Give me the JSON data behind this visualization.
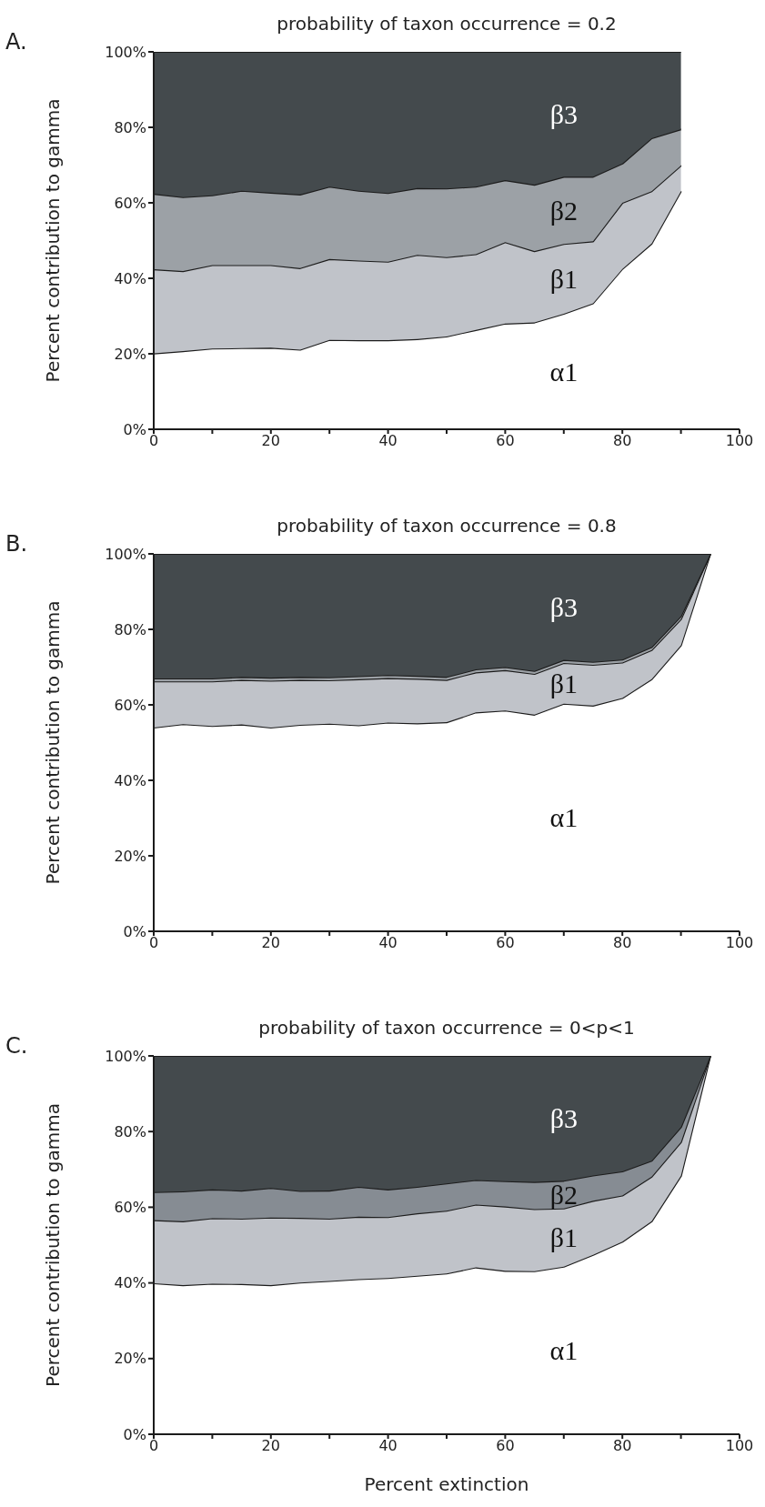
{
  "chart_data": [
    {
      "type": "area",
      "stacked": true,
      "title": "probability of taxon occurrence = 0.2",
      "ylabel": "Percent contribution to gamma",
      "annotations": [
        "A."
      ],
      "x": [
        0,
        5,
        10,
        15,
        20,
        25,
        30,
        35,
        40,
        45,
        50,
        55,
        60,
        65,
        70,
        75,
        80,
        85,
        90
      ],
      "xlim": [
        0,
        100
      ],
      "xticks": [
        0,
        {
          "value": 10,
          "label": null
        },
        20,
        {
          "value": 30,
          "label": null
        },
        40,
        {
          "value": 50,
          "label": null
        },
        60,
        {
          "value": 70,
          "label": null
        },
        80,
        {
          "value": 90,
          "label": null
        },
        100
      ],
      "ylim": [
        0,
        100
      ],
      "yticks": [
        {
          "value": 0,
          "label": "0%"
        },
        {
          "value": 20,
          "label": "20%"
        },
        {
          "value": 40,
          "label": "40%"
        },
        {
          "value": 60,
          "label": "60%"
        },
        {
          "value": 80,
          "label": "80%"
        },
        {
          "value": 100,
          "label": "100%"
        }
      ],
      "series": [
        {
          "name": "α1",
          "color": "#ffffff",
          "values": [
            20.1,
            20.7,
            21.4,
            21.5,
            21.6,
            21.1,
            23.7,
            23.6,
            23.6,
            23.9,
            24.6,
            26.3,
            28.0,
            28.3,
            30.6,
            33.4,
            42.5,
            49.2,
            63.1
          ]
        },
        {
          "name": "β1",
          "color": "#c0c3c9",
          "values": [
            22.3,
            21.2,
            22.1,
            22.0,
            21.9,
            21.6,
            21.4,
            21.1,
            20.8,
            22.3,
            21.0,
            20.1,
            21.6,
            18.9,
            18.5,
            16.4,
            17.5,
            13.9,
            6.8
          ]
        },
        {
          "name": "β2",
          "color": "#9ca1a6",
          "values": [
            20.0,
            19.6,
            18.5,
            19.7,
            19.2,
            19.5,
            19.2,
            18.5,
            18.2,
            17.7,
            18.2,
            17.9,
            16.4,
            17.6,
            17.8,
            17.1,
            10.4,
            14.0,
            9.6
          ]
        },
        {
          "name": "β3",
          "color": "#444a4d",
          "values": [
            37.6,
            38.5,
            38.0,
            36.8,
            37.3,
            37.8,
            35.7,
            36.8,
            37.4,
            36.1,
            36.2,
            35.7,
            34.0,
            35.2,
            33.1,
            33.1,
            29.6,
            22.9,
            20.5
          ]
        }
      ]
    },
    {
      "type": "area",
      "stacked": true,
      "title": "probability of taxon occurrence = 0.8",
      "ylabel": "Percent contribution to gamma",
      "annotations": [
        "B."
      ],
      "x": [
        0,
        5,
        10,
        15,
        20,
        25,
        30,
        35,
        40,
        45,
        50,
        55,
        60,
        65,
        70,
        75,
        80,
        85,
        90,
        95
      ],
      "xlim": [
        0,
        100
      ],
      "xticks": [
        0,
        {
          "value": 10,
          "label": null
        },
        20,
        {
          "value": 30,
          "label": null
        },
        40,
        {
          "value": 50,
          "label": null
        },
        60,
        {
          "value": 70,
          "label": null
        },
        80,
        {
          "value": 90,
          "label": null
        },
        100
      ],
      "ylim": [
        0,
        100
      ],
      "yticks": [
        {
          "value": 0,
          "label": "0%"
        },
        {
          "value": 20,
          "label": "20%"
        },
        {
          "value": 40,
          "label": "40%"
        },
        {
          "value": 60,
          "label": "60%"
        },
        {
          "value": 80,
          "label": "80%"
        },
        {
          "value": 100,
          "label": "100%"
        }
      ],
      "series": [
        {
          "name": "α1",
          "color": "#ffffff",
          "values": [
            54.0,
            54.9,
            54.4,
            54.8,
            54.0,
            54.7,
            55.0,
            54.6,
            55.3,
            55.1,
            55.4,
            58.0,
            58.5,
            57.4,
            60.3,
            59.8,
            61.8,
            66.8,
            75.8,
            100
          ]
        },
        {
          "name": "β1",
          "color": "#c0c3c9",
          "values": [
            12.2,
            11.3,
            11.8,
            11.8,
            12.4,
            11.9,
            11.5,
            12.2,
            11.8,
            11.8,
            11.2,
            10.6,
            10.7,
            10.8,
            10.8,
            10.8,
            9.4,
            7.7,
            6.9,
            0
          ]
        },
        {
          "color": "#9ca1a6",
          "values": [
            0.8,
            0.8,
            0.8,
            0.8,
            0.8,
            0.8,
            0.8,
            0.8,
            0.8,
            0.8,
            0.8,
            0.8,
            0.8,
            0.8,
            0.8,
            0.8,
            0.8,
            0.8,
            0.8,
            0
          ]
        },
        {
          "name": "β3",
          "color": "#444a4d",
          "values": [
            33.0,
            33.0,
            33.0,
            32.6,
            32.8,
            32.6,
            32.7,
            32.4,
            32.1,
            32.3,
            32.6,
            30.6,
            30.0,
            31.0,
            28.1,
            28.6,
            28.0,
            24.7,
            16.5,
            0
          ]
        }
      ]
    },
    {
      "type": "area",
      "stacked": true,
      "title": "probability of taxon occurrence = 0<p<1",
      "ylabel": "Percent contribution to gamma",
      "xlabel": "Percent extinction",
      "annotations": [
        "C."
      ],
      "x": [
        0,
        5,
        10,
        15,
        20,
        25,
        30,
        35,
        40,
        45,
        50,
        55,
        60,
        65,
        70,
        75,
        80,
        85,
        90,
        95
      ],
      "xlim": [
        0,
        100
      ],
      "xticks": [
        0,
        {
          "value": 10,
          "label": null
        },
        20,
        {
          "value": 30,
          "label": null
        },
        40,
        {
          "value": 50,
          "label": null
        },
        60,
        {
          "value": 70,
          "label": null
        },
        80,
        {
          "value": 90,
          "label": null
        },
        100
      ],
      "ylim": [
        0,
        100
      ],
      "yticks": [
        {
          "value": 0,
          "label": "0%"
        },
        {
          "value": 20,
          "label": "20%"
        },
        {
          "value": 40,
          "label": "40%"
        },
        {
          "value": 60,
          "label": "60%"
        },
        {
          "value": 80,
          "label": "80%"
        },
        {
          "value": 100,
          "label": "100%"
        }
      ],
      "series": [
        {
          "name": "α1",
          "color": "#ffffff",
          "values": [
            39.9,
            39.4,
            39.8,
            39.7,
            39.4,
            40.1,
            40.5,
            41.0,
            41.3,
            41.9,
            42.5,
            44.1,
            43.2,
            43.1,
            44.3,
            47.4,
            50.9,
            56.3,
            68.3,
            100
          ]
        },
        {
          "name": "β1",
          "color": "#c0c3c9",
          "values": [
            16.7,
            16.9,
            17.3,
            17.3,
            17.9,
            17.1,
            16.5,
            16.5,
            16.1,
            16.5,
            16.6,
            16.6,
            17.0,
            16.4,
            15.4,
            14.3,
            12.2,
            11.8,
            8.9,
            0
          ]
        },
        {
          "name": "β2",
          "color": "#868c93",
          "values": [
            7.4,
            7.9,
            7.6,
            7.4,
            7.8,
            7.1,
            7.4,
            7.9,
            7.3,
            7.0,
            7.2,
            6.5,
            6.7,
            7.2,
            7.3,
            6.7,
            6.4,
            4.2,
            4.0,
            0
          ]
        },
        {
          "name": "β3",
          "color": "#444a4d",
          "values": [
            36.0,
            35.8,
            35.3,
            35.6,
            34.9,
            35.7,
            35.6,
            34.6,
            35.3,
            34.6,
            33.7,
            32.8,
            33.1,
            33.3,
            33.0,
            31.6,
            30.5,
            27.7,
            18.8,
            0
          ]
        }
      ]
    }
  ]
}
